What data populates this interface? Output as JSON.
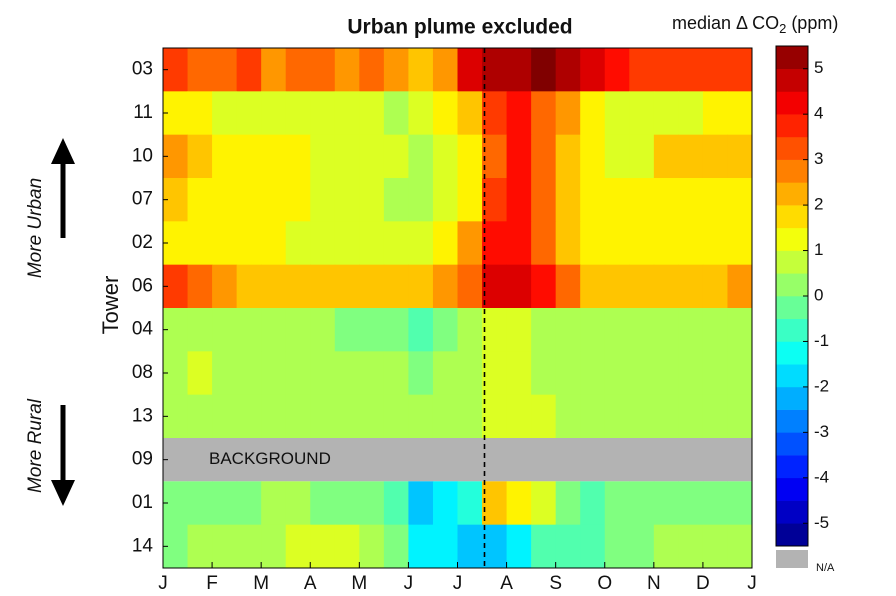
{
  "chart_data": {
    "type": "heatmap",
    "title": "Urban plume excluded",
    "y_label": "Tower",
    "annotations": {
      "urban": "More Urban",
      "rural": "More Rural",
      "background": "BACKGROUND",
      "na": "N/A"
    },
    "colorbar_title": {
      "main": "median Δ CO",
      "sub": "2",
      "end": " (ppm)"
    },
    "colormap": "jet",
    "na_color": "#b3b3b3",
    "clim": [
      -5.5,
      5.5
    ],
    "cticks": [
      -5,
      -4,
      -3,
      -2,
      -1,
      0,
      1,
      2,
      3,
      4,
      5
    ],
    "rows": [
      "03",
      "11",
      "10",
      "07",
      "02",
      "06",
      "04",
      "08",
      "13",
      "09",
      "01",
      "14"
    ],
    "xlim": [
      0,
      12
    ],
    "xticks": [
      {
        "value": 0,
        "label": "J"
      },
      {
        "value": 1,
        "label": "F"
      },
      {
        "value": 2,
        "label": "M"
      },
      {
        "value": 3,
        "label": "A"
      },
      {
        "value": 4,
        "label": "M"
      },
      {
        "value": 5,
        "label": "J"
      },
      {
        "value": 6,
        "label": "J"
      },
      {
        "value": 7,
        "label": "A"
      },
      {
        "value": 8,
        "label": "S"
      },
      {
        "value": 9,
        "label": "O"
      },
      {
        "value": 10,
        "label": "N"
      },
      {
        "value": 11,
        "label": "D"
      },
      {
        "value": 12,
        "label": "J"
      }
    ],
    "bins": [
      0,
      0.5,
      1,
      1.5,
      2,
      2.5,
      3,
      3.5,
      4,
      4.5,
      5,
      5.5,
      6,
      6.5,
      7,
      7.5,
      8,
      8.5,
      9,
      9.5,
      10,
      10.5,
      11,
      11.5,
      12
    ],
    "vline_x": 6.55,
    "values": [
      [
        3.5,
        3,
        3,
        3.5,
        2.5,
        3,
        3,
        2.5,
        3,
        2.5,
        2,
        2.5,
        4.5,
        5,
        5,
        5.5,
        5,
        4.5,
        4,
        3.5,
        3.5,
        3.5,
        3.5,
        3.5
      ],
      [
        1.5,
        1.5,
        1,
        1,
        1,
        1,
        1,
        1,
        1,
        0.5,
        1,
        1.5,
        2,
        3.5,
        4,
        3,
        2.5,
        1.5,
        1,
        1,
        1,
        1,
        1.5,
        1.5
      ],
      [
        2.5,
        2,
        1.5,
        1.5,
        1.5,
        1.5,
        1,
        1,
        1,
        1,
        0.5,
        1,
        1.5,
        3,
        4,
        3,
        2,
        1.5,
        1,
        1,
        2,
        2,
        2,
        2
      ],
      [
        2,
        1.5,
        1.5,
        1.5,
        1.5,
        1.5,
        1,
        1,
        1,
        0.5,
        0.5,
        1,
        1.5,
        3.5,
        4,
        3,
        2,
        1.5,
        1.5,
        1.5,
        1.5,
        1.5,
        1.5,
        1.5
      ],
      [
        1.5,
        1.5,
        1.5,
        1.5,
        1.5,
        1,
        1,
        1,
        1,
        1,
        1,
        1.5,
        2.5,
        4,
        4,
        3,
        2,
        1.5,
        1.5,
        1.5,
        1.5,
        1.5,
        1.5,
        1.5
      ],
      [
        3.5,
        3,
        2.5,
        2,
        2,
        2,
        2,
        2,
        2,
        2,
        2,
        2.5,
        3,
        4.5,
        4.5,
        4,
        3,
        2,
        2,
        2,
        2,
        2,
        2,
        2.5
      ],
      [
        0.5,
        0.5,
        0.5,
        0.5,
        0.5,
        0.5,
        0.5,
        0,
        0,
        0,
        -0.5,
        0,
        0.5,
        1,
        1,
        0.5,
        0.5,
        0.5,
        0.5,
        0.5,
        0.5,
        0.5,
        0.5,
        0.5
      ],
      [
        0.5,
        1,
        0.5,
        0.5,
        0.5,
        0.5,
        0.5,
        0.5,
        0.5,
        0.5,
        0,
        0.5,
        0.5,
        1,
        1,
        0.5,
        0.5,
        0.5,
        0.5,
        0.5,
        0.5,
        0.5,
        0.5,
        0.5
      ],
      [
        0.5,
        0.5,
        0.5,
        0.5,
        0.5,
        0.5,
        0.5,
        0.5,
        0.5,
        0.5,
        0.5,
        0.5,
        0.5,
        1,
        1,
        1,
        0.5,
        0.5,
        0.5,
        0.5,
        0.5,
        0.5,
        0.5,
        0.5
      ],
      [
        null,
        null,
        null,
        null,
        null,
        null,
        null,
        null,
        null,
        null,
        null,
        null,
        null,
        null,
        null,
        null,
        null,
        null,
        null,
        null,
        null,
        null,
        null,
        null
      ],
      [
        0,
        0,
        0,
        0,
        0.5,
        0.5,
        0,
        0,
        0,
        -0.5,
        -2,
        -1.5,
        -1,
        2,
        1.5,
        1,
        0,
        -0.5,
        0,
        0,
        0,
        0,
        0,
        0
      ],
      [
        0,
        0.5,
        0.5,
        0.5,
        0.5,
        1,
        1,
        1,
        0.5,
        0,
        -1.5,
        -1.5,
        -2,
        -2,
        -1.5,
        -0.5,
        -0.5,
        -0.5,
        0,
        0,
        0.5,
        0.5,
        0.5,
        0.5
      ]
    ]
  }
}
